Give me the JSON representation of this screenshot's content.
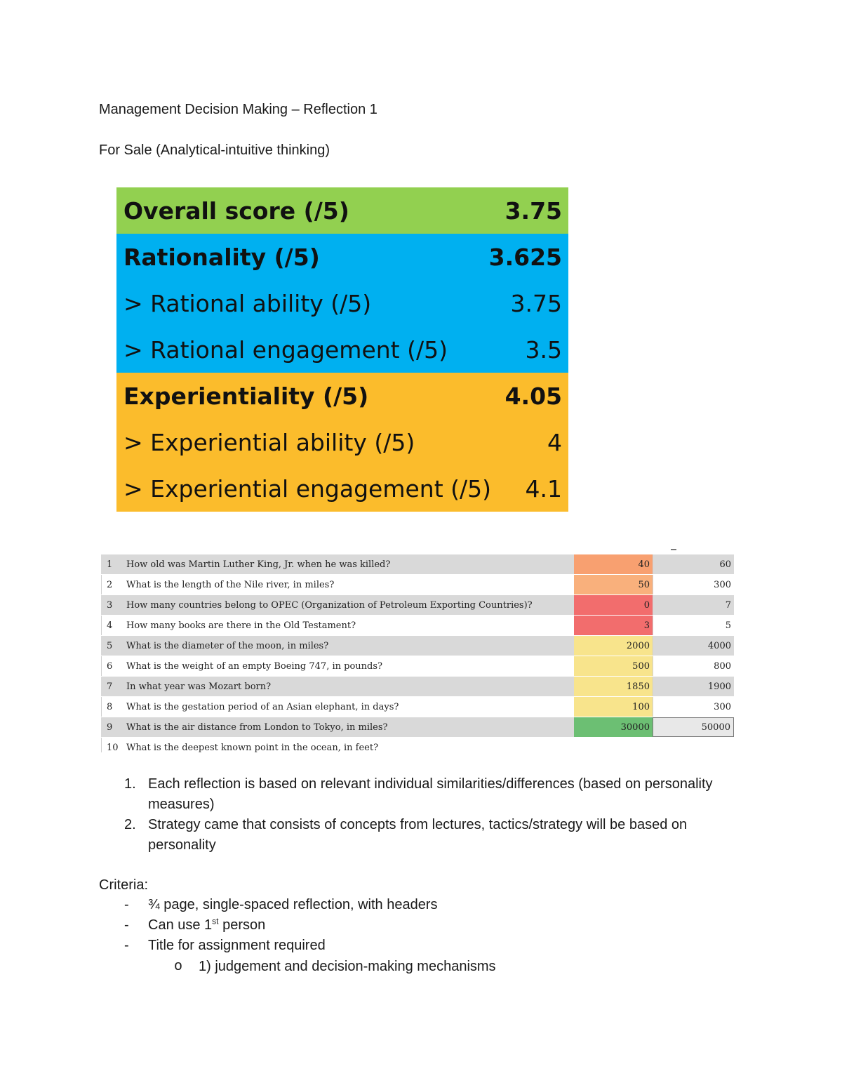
{
  "header": {
    "title": "Management Decision Making – Reflection 1",
    "subtitle": "For Sale (Analytical-intuitive thinking)"
  },
  "scores": [
    {
      "label": "Overall score (/5)",
      "value": "3.75",
      "color": "#92d050"
    },
    {
      "label": "Rationality (/5)",
      "value": "3.625",
      "color": "#00b0f0"
    },
    {
      "label": "> Rational ability (/5)",
      "value": "3.75",
      "color": "#00b0f0"
    },
    {
      "label": "> Rational engagement (/5)",
      "value": "3.5",
      "color": "#00b0f0"
    },
    {
      "label": "Experientiality (/5)",
      "value": "4.05",
      "color": "#fbbc2c"
    },
    {
      "label": "> Experiential ability (/5)",
      "value": "4",
      "color": "#fbbc2c"
    },
    {
      "label": "> Experiential engagement (/5)",
      "value": "4.1",
      "color": "#fbbc2c"
    }
  ],
  "questions": [
    {
      "num": "1",
      "text": "How old was Martin Luther King, Jr. when he was killed?",
      "low": "40",
      "high": "60",
      "low_color": "#f8a070"
    },
    {
      "num": "2",
      "text": "What is the length of the Nile river, in miles?",
      "low": "50",
      "high": "300",
      "low_color": "#f9b07c"
    },
    {
      "num": "3",
      "text": "How many countries belong to OPEC (Organization of Petroleum Exporting Countries)?",
      "low": "0",
      "high": "7",
      "low_color": "#f26d6d"
    },
    {
      "num": "4",
      "text": "How many books are there in the Old Testament?",
      "low": "3",
      "high": "5",
      "low_color": "#f26d6d"
    },
    {
      "num": "5",
      "text": "What is the diameter of the moon, in miles?",
      "low": "2000",
      "high": "4000",
      "low_color": "#f8e48c"
    },
    {
      "num": "6",
      "text": "What is the weight of an empty Boeing 747, in pounds?",
      "low": "500",
      "high": "800",
      "low_color": "#f8e48c"
    },
    {
      "num": "7",
      "text": "In what year was Mozart born?",
      "low": "1850",
      "high": "1900",
      "low_color": "#f8e48c"
    },
    {
      "num": "8",
      "text": "What is the gestation period of an Asian elephant, in days?",
      "low": "100",
      "high": "300",
      "low_color": "#f8e48c"
    },
    {
      "num": "9",
      "text": "What is the air distance from London to Tokyo, in miles?",
      "low": "30000",
      "high": "50000",
      "low_color": "#6cbf73"
    },
    {
      "num": "10",
      "text": "What is the deepest known point in the ocean, in feet?",
      "low": "",
      "high": "",
      "low_color": "#ffffff"
    }
  ],
  "numbered_list": [
    {
      "num": "1.",
      "text": "Each reflection is based on relevant individual similarities/differences (based on personality measures)"
    },
    {
      "num": "2.",
      "text": "Strategy came that consists of concepts from lectures, tactics/strategy will be based on personality"
    }
  ],
  "criteria": {
    "heading": "Criteria:",
    "dash": "-",
    "items": [
      "¾ page, single-spaced reflection, with headers",
      "Can use 1",
      "Title for assignment required"
    ],
    "ordinal_suffix": "st",
    "item2_tail": " person",
    "sub_bullet": "o",
    "sub_item": "1) judgement and decision-making mechanisms"
  }
}
